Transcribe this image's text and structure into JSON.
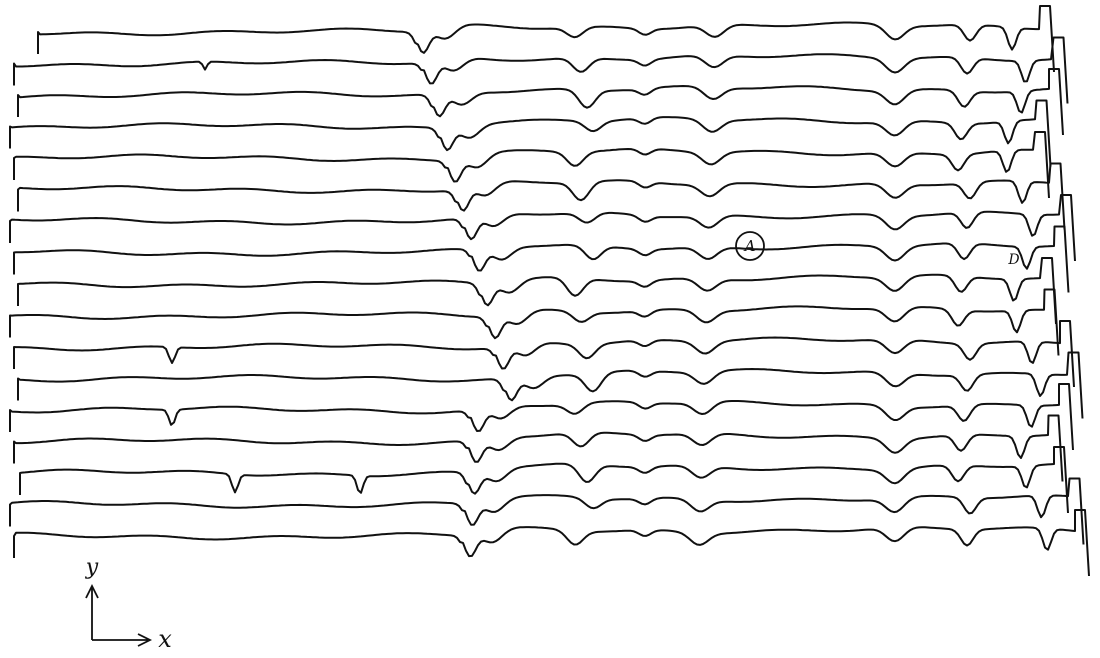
{
  "labels": {
    "marker_a": "A",
    "marker_d": "D",
    "y_axis": "y",
    "x_axis": "x"
  }
}
